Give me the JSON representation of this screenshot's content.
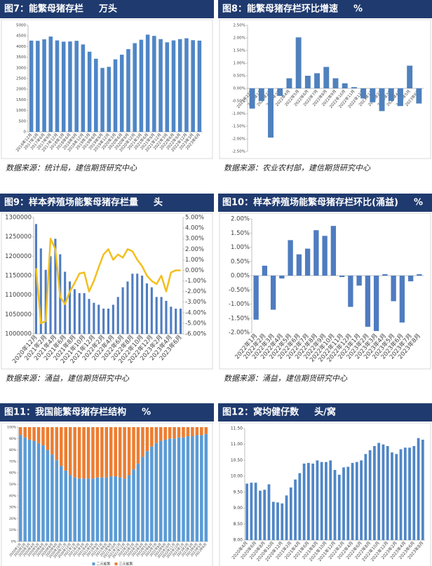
{
  "chart_data": [
    {
      "type": "bar",
      "title": "图7：能繁母猪存栏",
      "unit": "万头",
      "source": "数据来源：统计局，建信期货研究中心",
      "color": "#4f86c6",
      "categories": [
        "2016年12月",
        "2017年3月",
        "2017年6月",
        "2017年9月",
        "2017年12月",
        "2018年3月",
        "2018年6月",
        "2018年9月",
        "2018年12月",
        "2019年3月",
        "2019年6月",
        "2019年9月",
        "2019年12月",
        "2020年3月",
        "2020年6月",
        "2020年9月",
        "2020年12月",
        "2021年3月",
        "2021年6月",
        "2021年9月",
        "2021年12月",
        "2022年3月",
        "2022年6月",
        "2022年9月",
        "2022年12月",
        "2023年3月",
        "2023年6月"
      ],
      "values": [
        4280,
        4270,
        4340,
        4470,
        4290,
        4230,
        4240,
        4270,
        4100,
        3760,
        3430,
        3000,
        3050,
        3400,
        3620,
        3880,
        4160,
        4320,
        4560,
        4500,
        4350,
        4200,
        4290,
        4350,
        4390,
        4300,
        4280
      ],
      "ylim": [
        0,
        5000
      ],
      "yticks": [
        0,
        500,
        1000,
        1500,
        2000,
        2500,
        3000,
        3500,
        4000,
        4500,
        5000
      ]
    },
    {
      "type": "bar",
      "title": "图8：能繁母猪存栏环比增速",
      "unit": "%",
      "source": "数据来源：农业农村部，建信期货研究中心",
      "color": "#4f81bd",
      "categories": [
        "2021年12月",
        "2022年1月",
        "2022年2月",
        "2022年3月",
        "2022年4月",
        "2022年5月",
        "2022年6月",
        "2022年7月",
        "2022年8月",
        "2022年9月",
        "2022年10月",
        "2022年11月",
        "2022年12月",
        "2023年1月",
        "2023年2月",
        "2023年3月",
        "2023年4月",
        "2023年5月",
        "2023年6月"
      ],
      "values": [
        -0.8,
        -0.5,
        -1.95,
        -0.3,
        0.4,
        2.02,
        0.5,
        0.6,
        0.85,
        0.4,
        0.2,
        0.05,
        -0.4,
        -0.55,
        -0.9,
        -0.5,
        -0.7,
        0.9,
        -0.6
      ],
      "ylim": [
        -2.5,
        2.5
      ],
      "yticks": [
        {
          "value": -2.5,
          "label": "-2.50%"
        },
        {
          "value": -2,
          "label": "-2.00%"
        },
        {
          "value": -1.5,
          "label": "-1.50%"
        },
        {
          "value": -1,
          "label": "-1.00%"
        },
        {
          "value": -0.5,
          "label": "-0.50%"
        },
        {
          "value": 0,
          "label": "0.00%"
        },
        {
          "value": 0.5,
          "label": "0.50%"
        },
        {
          "value": 1,
          "label": "1.00%"
        },
        {
          "value": 1.5,
          "label": "1.50%"
        },
        {
          "value": 2,
          "label": "2.00%"
        },
        {
          "value": 2.5,
          "label": "2.50%"
        }
      ]
    },
    {
      "type": "combo",
      "title": "图9：样本养殖场能繁母猪存栏量",
      "unit": "头",
      "source": "数据来源：涌益，建信期货研究中心",
      "categories": [
        "2020年12月",
        null,
        "2021年2月",
        null,
        "2021年4月",
        null,
        "2021年6月",
        null,
        "2021年8月",
        null,
        "2021年10月",
        null,
        "2021年12月",
        null,
        "2022年2月",
        null,
        "2022年4月",
        null,
        "2022年6月",
        null,
        "2022年8月",
        null,
        "2022年10月",
        null,
        "2022年12月",
        null,
        "2023年2月",
        null,
        "2023年4月",
        null,
        "2023年6月"
      ],
      "series": [
        {
          "color": "#4f7cc0",
          "values": [
            1283000,
            1220000,
            1165000,
            1200000,
            1245000,
            1205000,
            1160000,
            1135000,
            1115000,
            1105000,
            1105000,
            1090000,
            1080000,
            1075000,
            1065000,
            1065000,
            1075000,
            1095000,
            1120000,
            1135000,
            1155000,
            1155000,
            1150000,
            1130000,
            1120000,
            1095000,
            1095000,
            1085000,
            1070000,
            1065000,
            1065000
          ]
        },
        {
          "color": "#f2bf1f",
          "axis": "y2",
          "values": [
            0.2,
            -5,
            -4.8,
            3,
            2,
            -2.5,
            -3.2,
            -2,
            -1.2,
            -0.3,
            -0.2,
            -2,
            -1,
            0.3,
            1.5,
            2,
            1,
            1.5,
            1.2,
            2,
            1.8,
            1,
            0.4,
            -0.5,
            -1,
            -1.3,
            -0.5,
            -2,
            -0.2,
            0,
            0
          ]
        }
      ],
      "ylim": [
        1000000,
        1300000
      ],
      "yticks": [
        1000000,
        1050000,
        1100000,
        1150000,
        1200000,
        1250000,
        1300000
      ],
      "y2lim": [
        -6,
        5
      ],
      "y2ticks": [
        {
          "value": -6,
          "label": "-6.00%"
        },
        {
          "value": -5,
          "label": "-5.00%"
        },
        {
          "value": -4,
          "label": "-4.00%"
        },
        {
          "value": -3,
          "label": "-3.00%"
        },
        {
          "value": -2,
          "label": "-2.00%"
        },
        {
          "value": -1,
          "label": "-1.00%"
        },
        {
          "value": 0,
          "label": "0.00%"
        },
        {
          "value": 1,
          "label": "1.00%"
        },
        {
          "value": 2,
          "label": "2.00%"
        },
        {
          "value": 3,
          "label": "3.00%"
        },
        {
          "value": 4,
          "label": "4.00%"
        },
        {
          "value": 5,
          "label": "5.00%"
        }
      ]
    },
    {
      "type": "bar",
      "title": "图10：样本养殖场能繁母猪存栏环比(涌益)",
      "unit": "%",
      "source": "数据来源：涌益，建信期货研究中心",
      "color": "#4f7cc0",
      "categories": [
        "2022年1月",
        "2022年2月",
        "2022年3月",
        "2022年4月",
        "2022年5月",
        "2022年6月",
        "2022年7月",
        "2022年8月",
        "2022年9月",
        "2022年10月",
        "2022年11月",
        "2022年12月",
        "2023年1月",
        "2023年2月",
        "2023年3月",
        "2023年4月",
        "2023年5月",
        "2023年6月",
        "2023年7月",
        "2023年8月"
      ],
      "values": [
        -1.55,
        0.35,
        -1.2,
        -0.1,
        1.25,
        0.75,
        0.95,
        1.6,
        1.4,
        1.75,
        -0.05,
        -1.1,
        -0.35,
        -1.8,
        -1.95,
        0.05,
        -0.9,
        -1.65,
        -0.2,
        0.05
      ],
      "ylim": [
        -2,
        2
      ],
      "yticks": [
        {
          "value": -2,
          "label": "-2.00%"
        },
        {
          "value": -1.5,
          "label": "-1.50%"
        },
        {
          "value": -1,
          "label": "-1.00%"
        },
        {
          "value": -0.5,
          "label": "-0.50%"
        },
        {
          "value": 0,
          "label": "0.00%"
        },
        {
          "value": 0.5,
          "label": "0.50%"
        },
        {
          "value": 1,
          "label": "1.00%"
        },
        {
          "value": 1.5,
          "label": "1.50%"
        },
        {
          "value": 2,
          "label": "2.00%"
        }
      ]
    },
    {
      "type": "stacked",
      "title": "图11：我国能繁母猪存栏结构",
      "unit": "%",
      "categories": [
        "2020年1月",
        "2020年2月",
        "2020年3月",
        "2020年4月",
        "2020年5月",
        "2020年6月",
        "2020年7月",
        "2020年8月",
        "2020年9月",
        "2020年10月",
        "2020年11月",
        "2020年12月",
        "2021年1月",
        "2021年2月",
        "2021年3月",
        "2021年4月",
        "2021年5月",
        "2021年6月",
        "2021年7月",
        "2021年8月",
        "2021年9月",
        "2021年10月",
        "2021年11月",
        "2021年12月",
        "2022年1月",
        "2022年2月",
        "2022年3月",
        "2022年4月",
        "2022年5月",
        "2022年6月",
        "2022年7月",
        "2022年8月",
        "2022年9月",
        "2022年10月",
        "2022年11月",
        "2022年12月",
        "2023年1月",
        "2023年2月",
        "2023年3月",
        "2023年4月",
        "2023年5月",
        "2023年6月"
      ],
      "series": [
        {
          "name": "二元能繁",
          "color": "#5b9bd5",
          "values": [
            93,
            91,
            89,
            88,
            86,
            84,
            80,
            76,
            71,
            66,
            62,
            58,
            56,
            55,
            55,
            55,
            55,
            56,
            56,
            56,
            57,
            57,
            56,
            55,
            58,
            63,
            68,
            74,
            79,
            83,
            86,
            88,
            89,
            90,
            90,
            91,
            91,
            92,
            92,
            93,
            93,
            94
          ]
        },
        {
          "name": "三元能繁",
          "color": "#ed7d31",
          "values": [
            7,
            9,
            11,
            12,
            14,
            16,
            20,
            24,
            29,
            34,
            38,
            42,
            44,
            45,
            45,
            45,
            45,
            44,
            44,
            44,
            43,
            43,
            44,
            45,
            42,
            37,
            32,
            26,
            21,
            17,
            14,
            12,
            11,
            10,
            10,
            9,
            9,
            8,
            8,
            7,
            7,
            6
          ]
        }
      ],
      "ylim": [
        0,
        100
      ],
      "yticks": [
        {
          "value": 0,
          "label": "0%"
        },
        {
          "value": 10,
          "label": "10%"
        },
        {
          "value": 20,
          "label": "20%"
        },
        {
          "value": 30,
          "label": "30%"
        },
        {
          "value": 40,
          "label": "40%"
        },
        {
          "value": 50,
          "label": "50%"
        },
        {
          "value": 60,
          "label": "60%"
        },
        {
          "value": 70,
          "label": "70%"
        },
        {
          "value": 80,
          "label": "80%"
        },
        {
          "value": 90,
          "label": "90%"
        },
        {
          "value": 100,
          "label": "100%"
        }
      ]
    },
    {
      "type": "bar",
      "title": "图12：窝均健仔数",
      "unit": "头/窝",
      "color": "#4f86c6",
      "categories": [
        "2020年4月",
        null,
        "2020年6月",
        null,
        "2020年8月",
        null,
        "2020年10月",
        null,
        "2020年12月",
        null,
        "2021年2月",
        null,
        "2021年4月",
        null,
        "2021年6月",
        null,
        "2021年8月",
        null,
        "2021年10月",
        null,
        "2021年12月",
        null,
        "2022年2月",
        null,
        "2022年4月",
        null,
        "2022年6月",
        null,
        "2022年8月",
        null,
        "2022年10月",
        null,
        "2022年12月",
        null,
        "2023年2月",
        null,
        "2023年4月",
        null,
        "2023年6月",
        null,
        "2023年8月"
      ],
      "values": [
        9.77,
        9.8,
        9.8,
        9.55,
        9.58,
        9.75,
        9.2,
        9.18,
        9.15,
        9.4,
        9.65,
        9.9,
        10.1,
        10.4,
        10.42,
        10.4,
        10.5,
        10.45,
        10.45,
        10.5,
        10.2,
        10.05,
        10.28,
        10.3,
        10.42,
        10.45,
        10.5,
        10.7,
        10.82,
        10.95,
        11.05,
        11,
        10.95,
        10.75,
        10.7,
        10.85,
        10.9,
        10.9,
        10.95,
        11.2,
        11.15
      ],
      "ylim": [
        8,
        11.5
      ],
      "yticks": [
        {
          "value": 8,
          "label": "8.00"
        },
        {
          "value": 8.5,
          "label": "8.50"
        },
        {
          "value": 9,
          "label": "9.00"
        },
        {
          "value": 9.5,
          "label": "9.50"
        },
        {
          "value": 10,
          "label": "10.00"
        },
        {
          "value": 10.5,
          "label": "10.50"
        },
        {
          "value": 11,
          "label": "11.00"
        },
        {
          "value": 11.5,
          "label": "11.50"
        }
      ]
    }
  ]
}
